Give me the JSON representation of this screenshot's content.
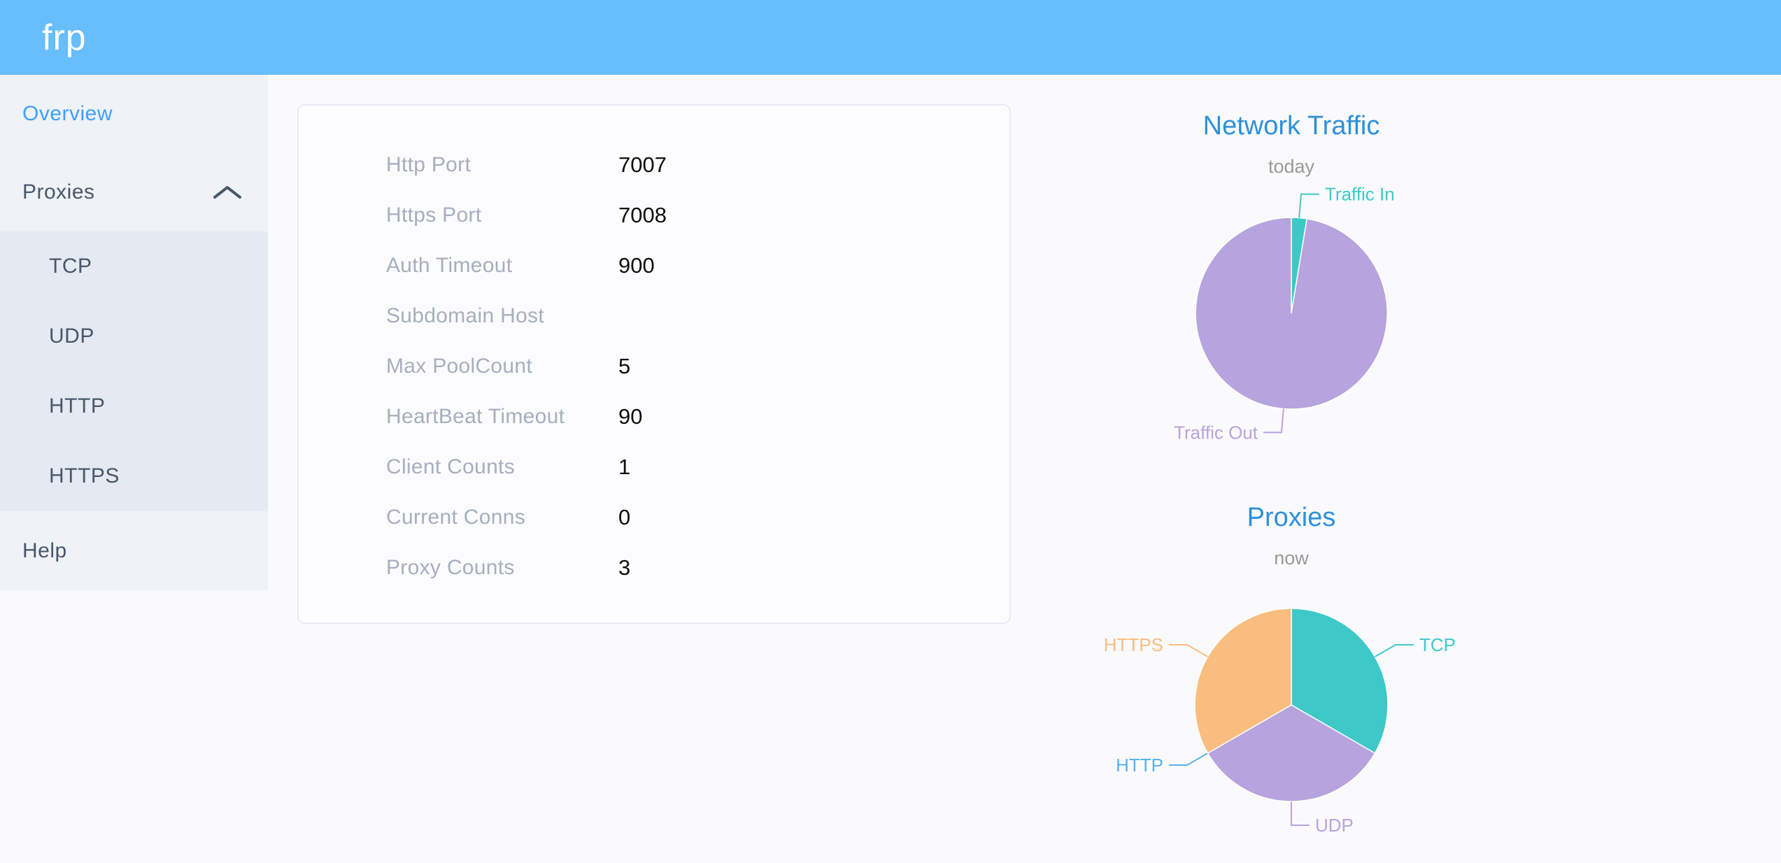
{
  "app": {
    "logo": "frp"
  },
  "sidebar": {
    "overview": "Overview",
    "proxies": "Proxies",
    "submenu": [
      "TCP",
      "UDP",
      "HTTP",
      "HTTPS"
    ],
    "help": "Help"
  },
  "card": {
    "rows": [
      {
        "label": "Http Port",
        "value": "7007"
      },
      {
        "label": "Https Port",
        "value": "7008"
      },
      {
        "label": "Auth Timeout",
        "value": "900"
      },
      {
        "label": "Subdomain Host",
        "value": ""
      },
      {
        "label": "Max PoolCount",
        "value": "5"
      },
      {
        "label": "HeartBeat Timeout",
        "value": "90"
      },
      {
        "label": "Client Counts",
        "value": "1"
      },
      {
        "label": "Current Conns",
        "value": "0"
      },
      {
        "label": "Proxy Counts",
        "value": "3"
      }
    ]
  },
  "chart_data": [
    {
      "type": "pie",
      "title": "Network Traffic",
      "subtitle": "today",
      "values_unit": "percent_of_total_estimated_from_arc_angles",
      "label_position": "outside-leader-lines",
      "legend": false,
      "data": [
        {
          "name": "Traffic In",
          "value": 2.6,
          "color": "#3ec9c8"
        },
        {
          "name": "Traffic Out",
          "value": 97.4,
          "color": "#b7a3dd"
        }
      ]
    },
    {
      "type": "pie",
      "title": "Proxies",
      "subtitle": "now",
      "values_unit": "proxy_count",
      "label_position": "outside-leader-lines",
      "legend": false,
      "data": [
        {
          "name": "TCP",
          "value": 1,
          "color": "#3ec9c8"
        },
        {
          "name": "UDP",
          "value": 1,
          "color": "#b7a3dd"
        },
        {
          "name": "HTTP",
          "value": 0,
          "color": "#5ab1ef"
        },
        {
          "name": "HTTPS",
          "value": 1,
          "color": "#f9bd80"
        }
      ]
    }
  ],
  "colors": {
    "header": "#68bdfb",
    "sidebar_bg": "#eff2f7",
    "submenu_bg": "#e5e9f1",
    "menu_text": "#48576a",
    "menu_active": "#3f9ffe",
    "chart_title": "#2d90d8",
    "chart_subtitle": "#999999"
  }
}
